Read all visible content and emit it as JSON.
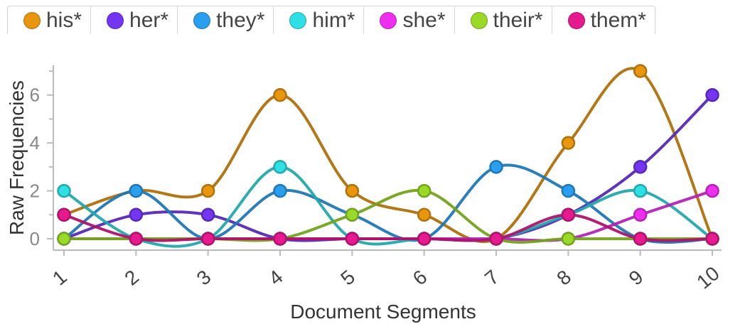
{
  "legend": [
    {
      "label": "his*",
      "color": "#e8960e"
    },
    {
      "label": "her*",
      "color": "#7436f0"
    },
    {
      "label": "they*",
      "color": "#2a9ff0"
    },
    {
      "label": "him*",
      "color": "#2ee0e4"
    },
    {
      "label": "she*",
      "color": "#ee2ff0"
    },
    {
      "label": "their*",
      "color": "#9ad928"
    },
    {
      "label": "them*",
      "color": "#e7198f"
    }
  ],
  "chart_data": {
    "type": "line",
    "xlabel": "Document Segments",
    "ylabel": "Raw Frequencies",
    "categories": [
      "1",
      "2",
      "3",
      "4",
      "5",
      "6",
      "7",
      "8",
      "9",
      "10"
    ],
    "yticks": [
      "0",
      "2",
      "4",
      "6"
    ],
    "ylim": [
      0,
      7
    ],
    "grid": false,
    "legend_position": "top",
    "series": [
      {
        "name": "his*",
        "color": "#e8960e",
        "values": [
          1,
          2,
          2,
          6,
          2,
          1,
          0,
          4,
          7,
          0
        ]
      },
      {
        "name": "her*",
        "color": "#7436f0",
        "values": [
          0,
          1,
          1,
          0,
          0,
          0,
          0,
          1,
          3,
          6
        ]
      },
      {
        "name": "they*",
        "color": "#2a9ff0",
        "values": [
          0,
          2,
          0,
          2,
          1,
          0,
          3,
          2,
          0,
          0
        ]
      },
      {
        "name": "him*",
        "color": "#2ee0e4",
        "values": [
          2,
          0,
          0,
          3,
          0,
          0,
          0,
          1,
          2,
          0
        ]
      },
      {
        "name": "she*",
        "color": "#ee2ff0",
        "values": [
          0,
          0,
          0,
          0,
          0,
          0,
          0,
          0,
          1,
          2
        ]
      },
      {
        "name": "their*",
        "color": "#9ad928",
        "values": [
          0,
          0,
          0,
          0,
          1,
          2,
          0,
          0,
          0,
          0
        ]
      },
      {
        "name": "them*",
        "color": "#e7198f",
        "values": [
          1,
          0,
          0,
          0,
          0,
          0,
          0,
          1,
          0,
          0
        ]
      }
    ]
  }
}
